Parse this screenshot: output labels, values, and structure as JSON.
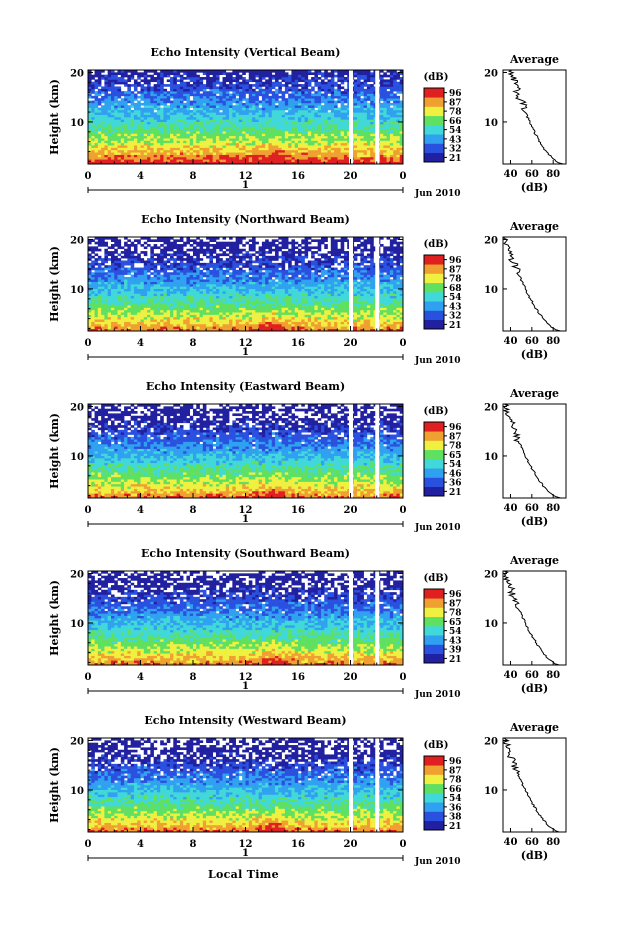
{
  "chart_data": {
    "type": "heatmap",
    "panels": [
      {
        "title": "Echo Intensity (Vertical Beam)",
        "ylabel": "Height (km)",
        "cb_ticks": [
          "96",
          "87",
          "78",
          "66",
          "54",
          "43",
          "32",
          "21"
        ],
        "avg_title": "Average",
        "avg_xticks": [
          "40",
          "60",
          "80"
        ],
        "avg_xlabel": "(dB)"
      },
      {
        "title": "Echo Intensity (Northward Beam)",
        "ylabel": "Height (km)",
        "cb_ticks": [
          "96",
          "87",
          "78",
          "68",
          "54",
          "43",
          "32",
          "21"
        ],
        "avg_title": "Average",
        "avg_xticks": [
          "40",
          "60",
          "80"
        ],
        "avg_xlabel": "(dB)"
      },
      {
        "title": "Echo Intensity (Eastward Beam)",
        "ylabel": "Height (km)",
        "cb_ticks": [
          "96",
          "87",
          "78",
          "65",
          "54",
          "46",
          "36",
          "21"
        ],
        "avg_title": "Average",
        "avg_xticks": [
          "40",
          "60",
          "80"
        ],
        "avg_xlabel": "(dB)"
      },
      {
        "title": "Echo Intensity (Southward Beam)",
        "ylabel": "Height (km)",
        "cb_ticks": [
          "96",
          "87",
          "78",
          "65",
          "54",
          "43",
          "39",
          "21"
        ],
        "avg_title": "Average",
        "avg_xticks": [
          "40",
          "60",
          "80"
        ],
        "avg_xlabel": "(dB)"
      },
      {
        "title": "Echo Intensity (Westward Beam)",
        "ylabel": "Height (km)",
        "cb_ticks": [
          "96",
          "87",
          "78",
          "66",
          "54",
          "36",
          "38",
          "21"
        ],
        "avg_title": "Average",
        "avg_xticks": [
          "40",
          "60",
          "80"
        ],
        "avg_xlabel": "(dB)"
      }
    ],
    "x_ticks": [
      "0",
      "4",
      "8",
      "12",
      "16",
      "20",
      "0"
    ],
    "y_ticks": [
      "20",
      "10"
    ],
    "avg_y_ticks": [
      "20",
      "10"
    ],
    "cb_unit": "(dB)",
    "day_label": "1",
    "date_label": "Jun 2010",
    "xlabel": "Local Time",
    "x_range_hours": [
      0,
      24
    ],
    "y_range_km": [
      1.5,
      20.5
    ],
    "avg_db_range": [
      33,
      92
    ],
    "gap_hours": [
      20,
      22
    ],
    "colormap": [
      "#2020a0",
      "#2a50e0",
      "#30a0f0",
      "#40d8d8",
      "#60e060",
      "#f0f040",
      "#f0a030",
      "#e02020"
    ]
  }
}
